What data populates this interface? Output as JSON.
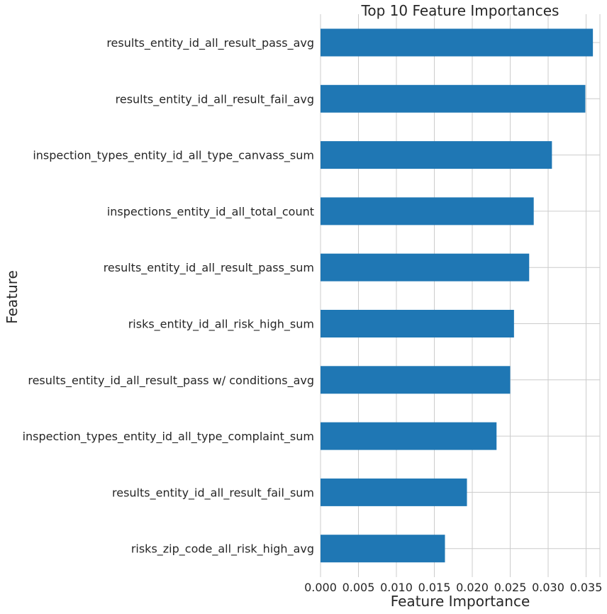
{
  "chart_data": {
    "type": "bar",
    "orientation": "horizontal",
    "title": "Top 10 Feature Importances",
    "xlabel": "Feature Importance",
    "ylabel": "Feature",
    "xlim": [
      0,
      0.0375
    ],
    "xticks": [
      0.0,
      0.005,
      0.01,
      0.015,
      0.02,
      0.025,
      0.03,
      0.035
    ],
    "xtick_labels": [
      "0.000",
      "0.005",
      "0.010",
      "0.015",
      "0.020",
      "0.025",
      "0.030",
      "0.035"
    ],
    "grid": true,
    "bar_color": "#1f77b4",
    "categories": [
      "results_entity_id_all_result_pass_avg",
      "results_entity_id_all_result_fail_avg",
      "inspection_types_entity_id_all_type_canvass_sum",
      "inspections_entity_id_all_total_count",
      "results_entity_id_all_result_pass_sum",
      "risks_entity_id_all_risk_high_sum",
      "results_entity_id_all_result_pass w/ conditions_avg",
      "inspection_types_entity_id_all_type_complaint_sum",
      "results_entity_id_all_result_fail_sum",
      "risks_zip_code_all_risk_high_avg"
    ],
    "values": [
      0.0359,
      0.0349,
      0.0305,
      0.0281,
      0.0275,
      0.0255,
      0.025,
      0.0232,
      0.0193,
      0.0164
    ]
  }
}
